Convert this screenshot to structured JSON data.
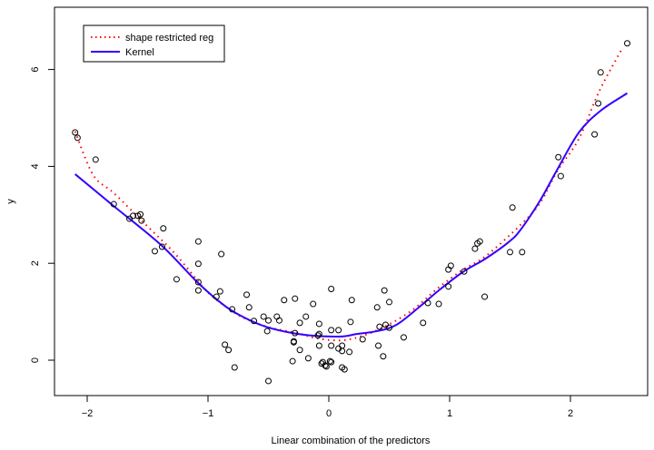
{
  "chart_data": {
    "type": "scatter",
    "title": "",
    "xlabel": "Linear combination of the predictors",
    "ylabel": "y",
    "xlim": [
      -2.25,
      2.55
    ],
    "ylim": [
      -0.75,
      7.3
    ],
    "xticks": [
      -2,
      -1,
      0,
      1,
      2
    ],
    "yticks": [
      0,
      2,
      4,
      6
    ],
    "xtick_labels": [
      "−2",
      "−1",
      "0",
      "1",
      "2"
    ],
    "ytick_labels": [
      "0",
      "2",
      "4",
      "6"
    ],
    "legend": {
      "placement": "top-left",
      "entries": [
        {
          "label": "shape restricted reg",
          "color": "#ff0000",
          "style": "dotted"
        },
        {
          "label": "Kernel",
          "color": "#3300ff",
          "style": "solid"
        }
      ]
    },
    "points": [
      [
        -2.1,
        4.7
      ],
      [
        -2.08,
        4.59
      ],
      [
        -1.93,
        4.14
      ],
      [
        -1.78,
        3.22
      ],
      [
        -1.65,
        2.92
      ],
      [
        -1.62,
        2.98
      ],
      [
        -1.58,
        2.98
      ],
      [
        -1.56,
        3.01
      ],
      [
        -1.55,
        2.88
      ],
      [
        -1.37,
        2.72
      ],
      [
        -1.44,
        2.25
      ],
      [
        -1.38,
        2.34
      ],
      [
        -1.26,
        1.67
      ],
      [
        -1.08,
        2.45
      ],
      [
        -1.08,
        1.99
      ],
      [
        -1.08,
        1.61
      ],
      [
        -1.08,
        1.44
      ],
      [
        -0.89,
        2.19
      ],
      [
        -0.9,
        1.42
      ],
      [
        -0.93,
        1.31
      ],
      [
        -0.8,
        1.05
      ],
      [
        -0.86,
        0.32
      ],
      [
        -0.83,
        0.21
      ],
      [
        -0.78,
        -0.15
      ],
      [
        -0.68,
        1.35
      ],
      [
        -0.66,
        1.09
      ],
      [
        -0.62,
        0.81
      ],
      [
        -0.54,
        0.9
      ],
      [
        -0.5,
        0.82
      ],
      [
        -0.51,
        0.6
      ],
      [
        -0.5,
        -0.43
      ],
      [
        -0.43,
        0.9
      ],
      [
        -0.41,
        0.82
      ],
      [
        -0.37,
        1.24
      ],
      [
        -0.28,
        1.27
      ],
      [
        -0.24,
        0.77
      ],
      [
        -0.28,
        0.56
      ],
      [
        -0.29,
        0.39
      ],
      [
        -0.29,
        0.37
      ],
      [
        -0.24,
        0.21
      ],
      [
        -0.3,
        -0.02
      ],
      [
        -0.19,
        0.9
      ],
      [
        -0.17,
        0.04
      ],
      [
        -0.13,
        1.16
      ],
      [
        -0.09,
        0.51
      ],
      [
        -0.08,
        0.54
      ],
      [
        -0.08,
        0.3
      ],
      [
        -0.08,
        0.75
      ],
      [
        -0.05,
        -0.04
      ],
      [
        -0.06,
        -0.07
      ],
      [
        -0.03,
        -0.11
      ],
      [
        0.01,
        -0.02
      ],
      [
        -0.02,
        -0.13
      ],
      [
        0.02,
        1.47
      ],
      [
        0.02,
        0.62
      ],
      [
        0.02,
        0.3
      ],
      [
        0.08,
        0.24
      ],
      [
        0.08,
        0.62
      ],
      [
        0.11,
        0.3
      ],
      [
        0.11,
        0.19
      ],
      [
        0.11,
        -0.15
      ],
      [
        0.13,
        -0.19
      ],
      [
        0.17,
        0.17
      ],
      [
        0.19,
        1.24
      ],
      [
        0.18,
        0.79
      ],
      [
        0.02,
        -0.04
      ],
      [
        0.4,
        1.09
      ],
      [
        0.46,
        1.44
      ],
      [
        0.5,
        1.2
      ],
      [
        0.42,
        0.69
      ],
      [
        0.47,
        0.73
      ],
      [
        0.5,
        0.67
      ],
      [
        0.41,
        0.3
      ],
      [
        0.45,
        0.08
      ],
      [
        0.28,
        0.43
      ],
      [
        0.62,
        0.47
      ],
      [
        0.78,
        0.77
      ],
      [
        0.82,
        1.18
      ],
      [
        0.91,
        1.16
      ],
      [
        0.99,
        1.52
      ],
      [
        0.99,
        1.87
      ],
      [
        1.01,
        1.95
      ],
      [
        1.12,
        1.83
      ],
      [
        1.29,
        1.31
      ],
      [
        1.21,
        2.3
      ],
      [
        1.23,
        2.41
      ],
      [
        1.25,
        2.45
      ],
      [
        1.52,
        3.15
      ],
      [
        1.5,
        2.23
      ],
      [
        1.6,
        2.23
      ],
      [
        1.9,
        4.19
      ],
      [
        1.92,
        3.8
      ],
      [
        2.2,
        4.66
      ],
      [
        2.23,
        5.3
      ],
      [
        2.25,
        5.94
      ],
      [
        2.47,
        6.54
      ]
    ],
    "series": [
      {
        "name": "shape restricted reg",
        "color": "#ff0000",
        "x": [
          -2.1,
          -1.95,
          -1.78,
          -1.52,
          -1.27,
          -1.02,
          -0.85,
          -0.71,
          -0.5,
          -0.26,
          -0.1,
          0.11,
          0.3,
          0.5,
          0.7,
          0.9,
          1.1,
          1.3,
          1.59,
          1.75,
          1.89,
          2.07,
          2.24,
          2.43
        ],
        "y": [
          4.72,
          3.82,
          3.45,
          2.81,
          2.19,
          1.45,
          1.1,
          0.88,
          0.68,
          0.56,
          0.45,
          0.41,
          0.52,
          0.74,
          1.05,
          1.48,
          1.85,
          2.15,
          2.8,
          3.25,
          3.9,
          4.57,
          5.56,
          6.44
        ]
      },
      {
        "name": "Kernel",
        "color": "#3300ff",
        "x": [
          -2.1,
          -1.78,
          -1.39,
          -1.08,
          -0.86,
          -0.7,
          -0.52,
          -0.3,
          -0.1,
          0.11,
          0.23,
          0.4,
          0.56,
          0.75,
          0.91,
          1.11,
          1.3,
          1.49,
          1.59,
          1.75,
          1.89,
          2.07,
          2.25,
          2.47
        ],
        "y": [
          3.84,
          3.18,
          2.38,
          1.59,
          1.12,
          0.88,
          0.69,
          0.56,
          0.5,
          0.49,
          0.54,
          0.6,
          0.73,
          1.1,
          1.44,
          1.82,
          2.1,
          2.44,
          2.7,
          3.3,
          3.93,
          4.7,
          5.15,
          5.51
        ]
      }
    ]
  }
}
